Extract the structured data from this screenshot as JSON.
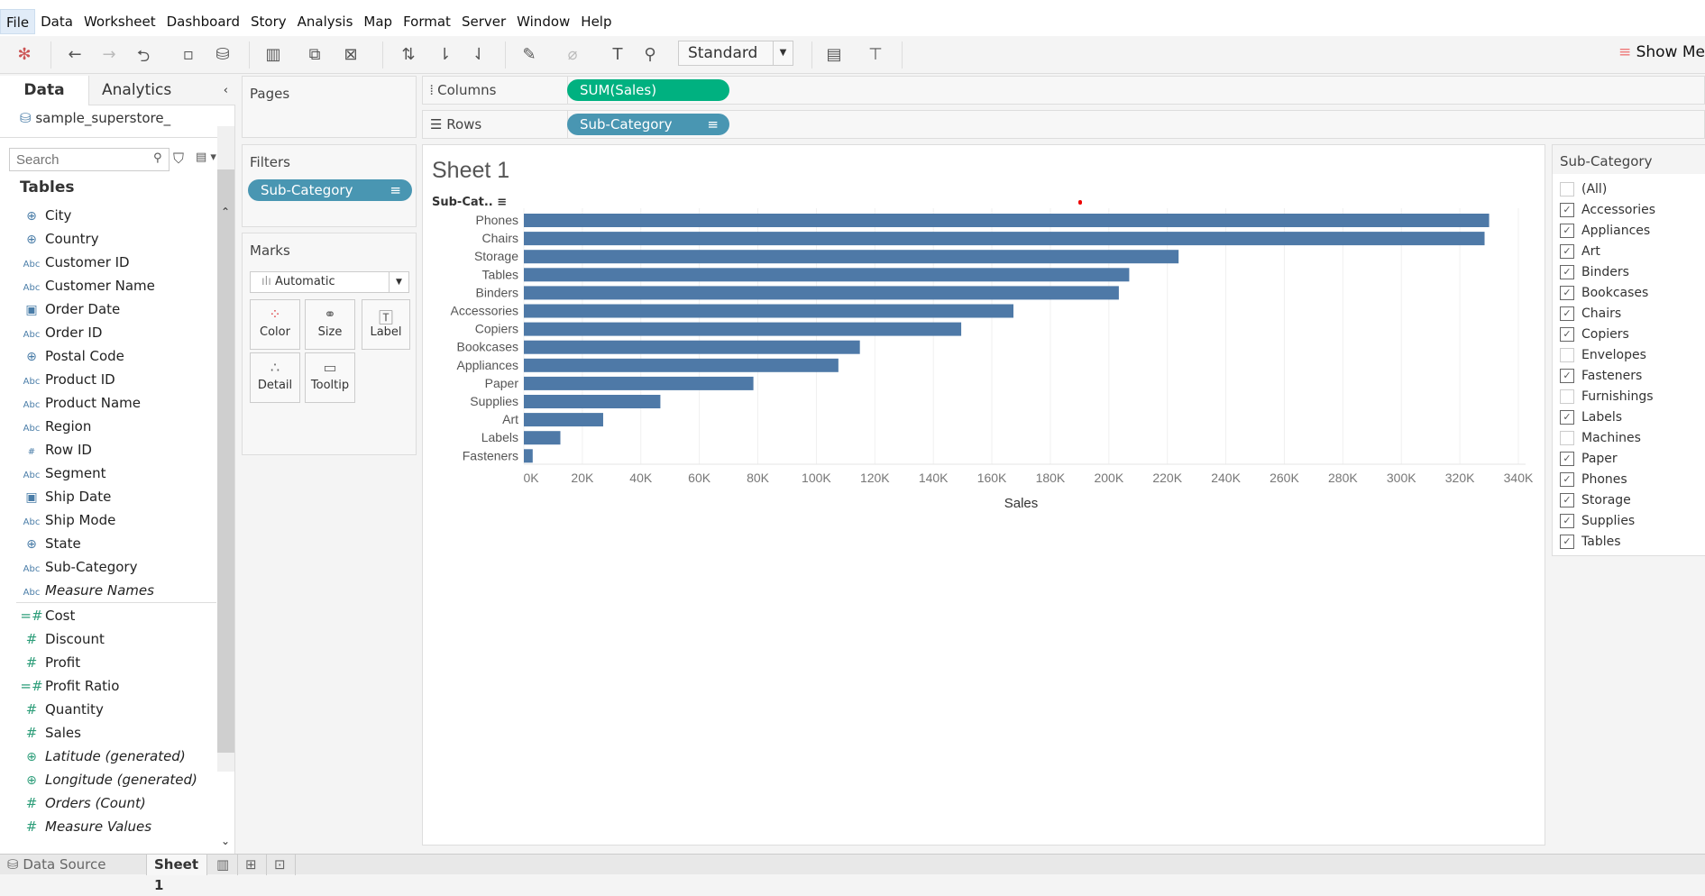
{
  "menu": [
    "File",
    "Data",
    "Worksheet",
    "Dashboard",
    "Story",
    "Analysis",
    "Map",
    "Format",
    "Server",
    "Window",
    "Help"
  ],
  "toolbar": {
    "fit": "Standard",
    "show_me": "Show Me"
  },
  "left": {
    "tab_data": "Data",
    "tab_analytics": "Analytics",
    "datasource": "sample_superstore_",
    "search_placeholder": "Search",
    "tables": "Tables",
    "fields": [
      {
        "icon": "globe",
        "name": "City"
      },
      {
        "icon": "globe",
        "name": "Country"
      },
      {
        "icon": "Abc",
        "name": "Customer ID"
      },
      {
        "icon": "Abc",
        "name": "Customer Name"
      },
      {
        "icon": "calendar",
        "name": "Order Date"
      },
      {
        "icon": "Abc",
        "name": "Order ID"
      },
      {
        "icon": "globe",
        "name": "Postal Code"
      },
      {
        "icon": "Abc",
        "name": "Product ID"
      },
      {
        "icon": "Abc",
        "name": "Product Name"
      },
      {
        "icon": "Abc",
        "name": "Region"
      },
      {
        "icon": "#",
        "name": "Row ID"
      },
      {
        "icon": "Abc",
        "name": "Segment"
      },
      {
        "icon": "calendar",
        "name": "Ship Date"
      },
      {
        "icon": "Abc",
        "name": "Ship Mode"
      },
      {
        "icon": "globe",
        "name": "State"
      },
      {
        "icon": "Abc",
        "name": "Sub-Category"
      },
      {
        "icon": "Abc",
        "name": "Measure Names",
        "italic": true
      }
    ],
    "measures": [
      {
        "icon": "=#",
        "name": "Cost"
      },
      {
        "icon": "#",
        "name": "Discount"
      },
      {
        "icon": "#",
        "name": "Profit"
      },
      {
        "icon": "=#",
        "name": "Profit Ratio"
      },
      {
        "icon": "#",
        "name": "Quantity"
      },
      {
        "icon": "#",
        "name": "Sales"
      },
      {
        "icon": "globe",
        "name": "Latitude (generated)",
        "italic": true
      },
      {
        "icon": "globe",
        "name": "Longitude (generated)",
        "italic": true
      },
      {
        "icon": "#",
        "name": "Orders (Count)",
        "italic": true
      },
      {
        "icon": "#",
        "name": "Measure Values",
        "italic": true
      }
    ]
  },
  "pages": "Pages",
  "filters": {
    "title": "Filters",
    "pill": "Sub-Category"
  },
  "marks": {
    "title": "Marks",
    "type": "Automatic",
    "buttons": [
      "Color",
      "Size",
      "Label",
      "Detail",
      "Tooltip"
    ]
  },
  "shelves": {
    "columns": "Columns",
    "columns_pill": "SUM(Sales)",
    "rows": "Rows",
    "rows_pill": "Sub-Category"
  },
  "colors": {
    "measure_pill": "#00b180",
    "dim_pill": "#4996b2",
    "bar": "#4e79a7"
  },
  "sheet": {
    "title": "Sheet 1",
    "row_header": "Sub-Cat.."
  },
  "chart_data": {
    "type": "bar",
    "orientation": "horizontal",
    "title": "Sheet 1",
    "xlabel": "Sales",
    "ylabel": "Sub-Category",
    "categories": [
      "Phones",
      "Chairs",
      "Storage",
      "Tables",
      "Binders",
      "Accessories",
      "Copiers",
      "Bookcases",
      "Appliances",
      "Paper",
      "Supplies",
      "Art",
      "Labels",
      "Fasteners"
    ],
    "values": [
      330007,
      328449,
      223844,
      206966,
      203413,
      167380,
      149528,
      114880,
      107532,
      78479,
      46674,
      27119,
      12486,
      3024
    ],
    "xlim": [
      0,
      340000
    ],
    "ticks": [
      "0K",
      "20K",
      "40K",
      "60K",
      "80K",
      "100K",
      "120K",
      "140K",
      "160K",
      "180K",
      "200K",
      "220K",
      "240K",
      "260K",
      "280K",
      "300K",
      "320K",
      "340K"
    ],
    "grid": true
  },
  "filter_card": {
    "title": "Sub-Category",
    "items": [
      {
        "label": "(All)",
        "checked": false
      },
      {
        "label": "Accessories",
        "checked": true
      },
      {
        "label": "Appliances",
        "checked": true
      },
      {
        "label": "Art",
        "checked": true
      },
      {
        "label": "Binders",
        "checked": true
      },
      {
        "label": "Bookcases",
        "checked": true
      },
      {
        "label": "Chairs",
        "checked": true
      },
      {
        "label": "Copiers",
        "checked": true
      },
      {
        "label": "Envelopes",
        "checked": false
      },
      {
        "label": "Fasteners",
        "checked": true
      },
      {
        "label": "Furnishings",
        "checked": false
      },
      {
        "label": "Labels",
        "checked": true
      },
      {
        "label": "Machines",
        "checked": false
      },
      {
        "label": "Paper",
        "checked": true
      },
      {
        "label": "Phones",
        "checked": true
      },
      {
        "label": "Storage",
        "checked": true
      },
      {
        "label": "Supplies",
        "checked": true
      },
      {
        "label": "Tables",
        "checked": true
      }
    ]
  },
  "bottom": {
    "data_source": "Data Source",
    "sheet": "Sheet 1"
  }
}
